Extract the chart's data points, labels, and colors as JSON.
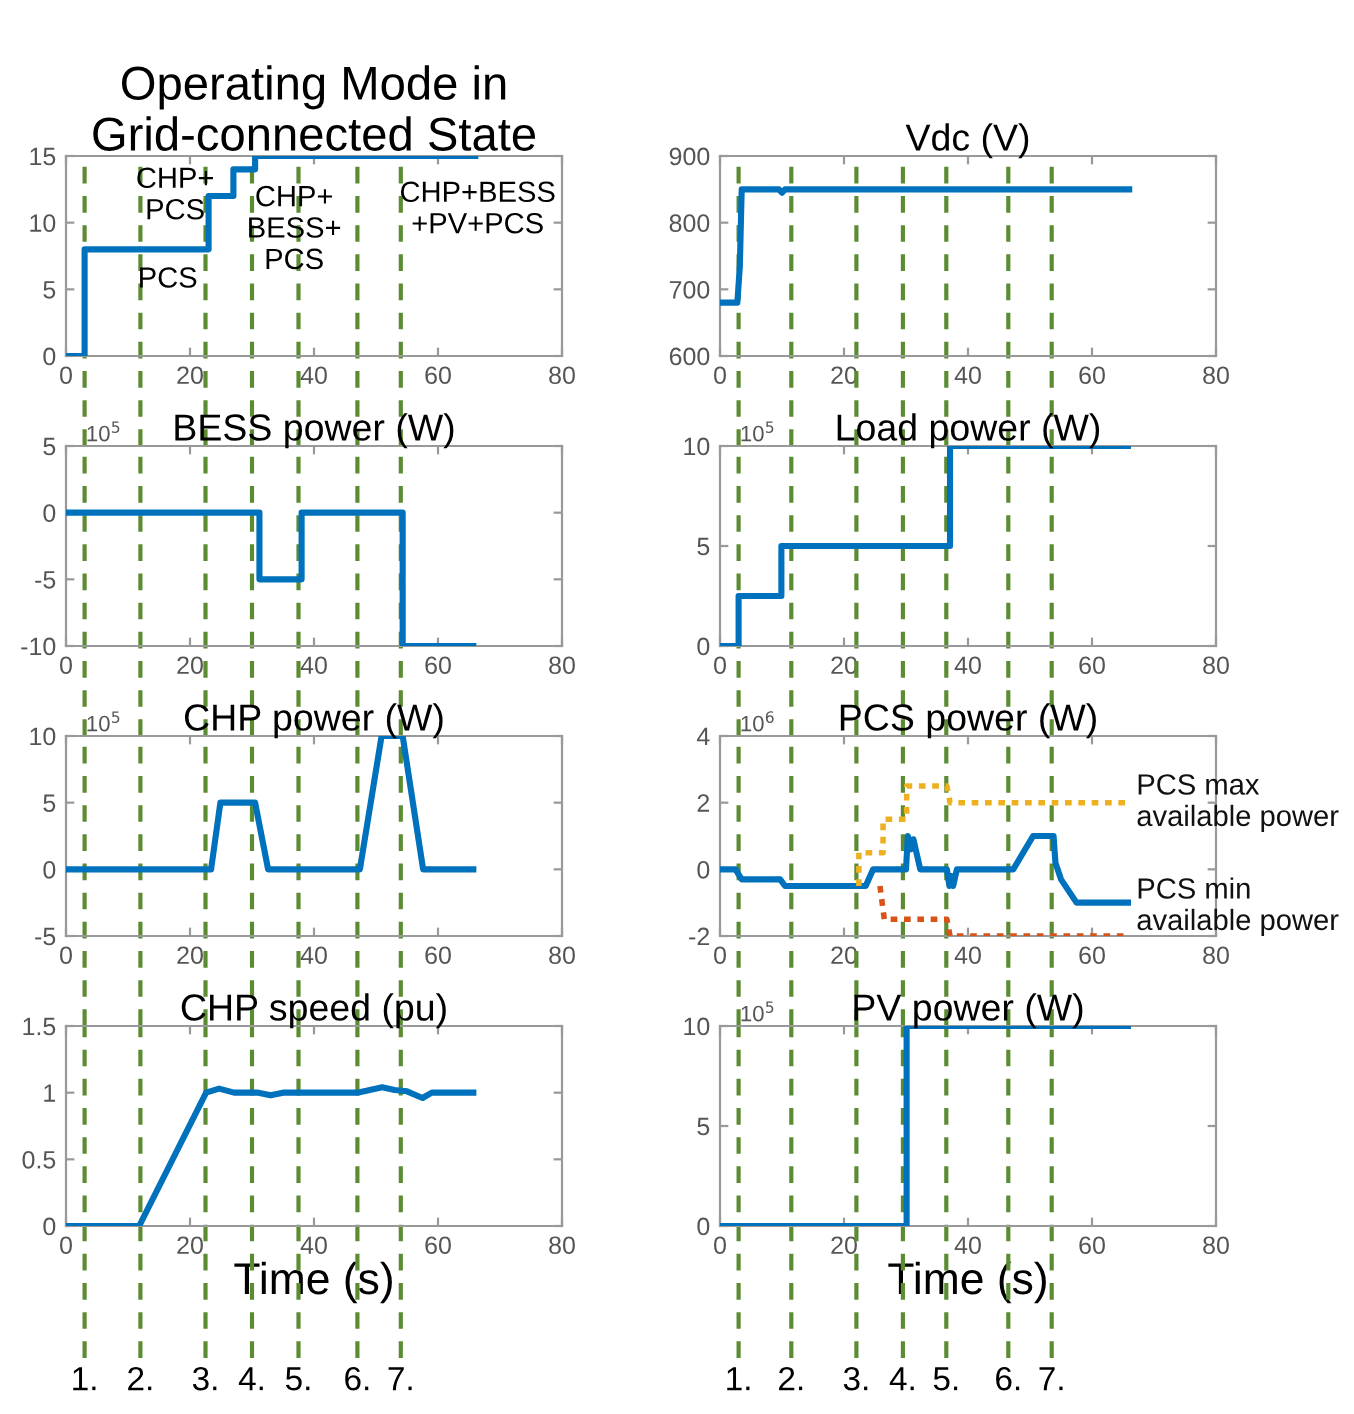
{
  "chart_data": [
    {
      "type": "line",
      "title": "Operating Mode in\nGrid-connected State",
      "xlim": [
        0,
        80
      ],
      "xticks": [
        0,
        20,
        40,
        60,
        80
      ],
      "ylim": [
        0,
        15
      ],
      "yticks": [
        0,
        5,
        10,
        15
      ],
      "grid": false,
      "series": [
        {
          "color": "#0072bd",
          "x": [
            0,
            3,
            3,
            23,
            23,
            27,
            27,
            30.5,
            30.5,
            66
          ],
          "values": [
            0,
            0,
            8,
            8,
            12,
            12,
            14,
            14,
            15,
            15
          ]
        }
      ],
      "annotations": [
        "CHP+\nPCS",
        "PCS",
        "CHP+\nBESS+\nPCS",
        "CHP+BESS\n+PV+PCS"
      ],
      "ref_lines": [
        {
          "axis": "x",
          "value": 3,
          "label": null,
          "color": "#5b8c32",
          "line_style": "dashed"
        },
        {
          "axis": "x",
          "value": 12,
          "label": null,
          "color": "#5b8c32",
          "line_style": "dashed"
        },
        {
          "axis": "x",
          "value": 22.5,
          "label": null,
          "color": "#5b8c32",
          "line_style": "dashed"
        },
        {
          "axis": "x",
          "value": 30,
          "label": null,
          "color": "#5b8c32",
          "line_style": "dashed"
        },
        {
          "axis": "x",
          "value": 37.5,
          "label": null,
          "color": "#5b8c32",
          "line_style": "dashed"
        },
        {
          "axis": "x",
          "value": 47,
          "label": null,
          "color": "#5b8c32",
          "line_style": "dashed"
        },
        {
          "axis": "x",
          "value": 54,
          "label": null,
          "color": "#5b8c32",
          "line_style": "dashed"
        }
      ]
    },
    {
      "type": "line",
      "title": "Vdc (V)",
      "xlim": [
        0,
        80
      ],
      "xticks": [
        0,
        20,
        40,
        60,
        80
      ],
      "ylim": [
        600,
        900
      ],
      "yticks": [
        600,
        700,
        800,
        900
      ],
      "grid": false,
      "series": [
        {
          "color": "#0072bd",
          "x": [
            0,
            2.8,
            3.2,
            3.5,
            9.5,
            10,
            10.5,
            66
          ],
          "values": [
            680,
            680,
            735,
            850,
            850,
            845,
            850,
            850
          ]
        }
      ],
      "ref_lines": [
        {
          "axis": "x",
          "value": 3,
          "label": null,
          "color": "#5b8c32",
          "line_style": "dashed"
        },
        {
          "axis": "x",
          "value": 11.5,
          "label": null,
          "color": "#5b8c32",
          "line_style": "dashed"
        },
        {
          "axis": "x",
          "value": 22,
          "label": null,
          "color": "#5b8c32",
          "line_style": "dashed"
        },
        {
          "axis": "x",
          "value": 29.5,
          "label": null,
          "color": "#5b8c32",
          "line_style": "dashed"
        },
        {
          "axis": "x",
          "value": 36.5,
          "label": null,
          "color": "#5b8c32",
          "line_style": "dashed"
        },
        {
          "axis": "x",
          "value": 46.5,
          "label": null,
          "color": "#5b8c32",
          "line_style": "dashed"
        },
        {
          "axis": "x",
          "value": 53.5,
          "label": null,
          "color": "#5b8c32",
          "line_style": "dashed"
        }
      ]
    },
    {
      "type": "line",
      "title": "BESS power (W)",
      "xlim": [
        0,
        80
      ],
      "xticks": [
        0,
        20,
        40,
        60,
        80
      ],
      "ylim": [
        -10,
        5
      ],
      "yticks": [
        -10,
        -5,
        0,
        5
      ],
      "grid": false,
      "annotations": [
        "10$^{5}$"
      ],
      "series": [
        {
          "color": "#0072bd",
          "x": [
            0,
            31.2,
            31.2,
            38,
            38,
            54.3,
            54.3,
            65.7
          ],
          "values": [
            0,
            0,
            -5,
            -5,
            0,
            0,
            -10,
            -10
          ]
        }
      ],
      "ref_lines": [
        {
          "axis": "x",
          "value": 3,
          "label": null,
          "color": "#5b8c32",
          "line_style": "dashed"
        },
        {
          "axis": "x",
          "value": 12,
          "label": null,
          "color": "#5b8c32",
          "line_style": "dashed"
        },
        {
          "axis": "x",
          "value": 22.5,
          "label": null,
          "color": "#5b8c32",
          "line_style": "dashed"
        },
        {
          "axis": "x",
          "value": 30,
          "label": null,
          "color": "#5b8c32",
          "line_style": "dashed"
        },
        {
          "axis": "x",
          "value": 37.5,
          "label": null,
          "color": "#5b8c32",
          "line_style": "dashed"
        },
        {
          "axis": "x",
          "value": 47,
          "label": null,
          "color": "#5b8c32",
          "line_style": "dashed"
        },
        {
          "axis": "x",
          "value": 54,
          "label": null,
          "color": "#5b8c32",
          "line_style": "dashed"
        }
      ]
    },
    {
      "type": "line",
      "title": "Load power (W)",
      "xlim": [
        0,
        80
      ],
      "xticks": [
        0,
        20,
        40,
        60,
        80
      ],
      "ylim": [
        0,
        10
      ],
      "yticks": [
        0,
        5,
        10
      ],
      "grid": false,
      "annotations": [
        "10$^{5}$"
      ],
      "series": [
        {
          "color": "#0072bd",
          "x": [
            0,
            3,
            3,
            9.9,
            9.9,
            37.1,
            37.1,
            65.8
          ],
          "values": [
            0,
            0,
            2.5,
            2.5,
            5,
            5,
            10,
            10
          ]
        }
      ],
      "ref_lines": [
        {
          "axis": "x",
          "value": 3,
          "label": null,
          "color": "#5b8c32",
          "line_style": "dashed"
        },
        {
          "axis": "x",
          "value": 11.5,
          "label": null,
          "color": "#5b8c32",
          "line_style": "dashed"
        },
        {
          "axis": "x",
          "value": 22,
          "label": null,
          "color": "#5b8c32",
          "line_style": "dashed"
        },
        {
          "axis": "x",
          "value": 29.5,
          "label": null,
          "color": "#5b8c32",
          "line_style": "dashed"
        },
        {
          "axis": "x",
          "value": 36.5,
          "label": null,
          "color": "#5b8c32",
          "line_style": "dashed"
        },
        {
          "axis": "x",
          "value": 46.5,
          "label": null,
          "color": "#5b8c32",
          "line_style": "dashed"
        },
        {
          "axis": "x",
          "value": 53.5,
          "label": null,
          "color": "#5b8c32",
          "line_style": "dashed"
        }
      ]
    },
    {
      "type": "line",
      "title": "CHP power (W)",
      "xlim": [
        0,
        80
      ],
      "xticks": [
        0,
        20,
        40,
        60,
        80
      ],
      "ylim": [
        -5,
        10
      ],
      "yticks": [
        -5,
        0,
        5,
        10
      ],
      "grid": false,
      "annotations": [
        "10$^{5}$"
      ],
      "series": [
        {
          "color": "#0072bd",
          "x": [
            0,
            23.4,
            24.9,
            30.5,
            32.6,
            47.4,
            50.9,
            54.3,
            57.6,
            65.7
          ],
          "values": [
            0,
            0,
            5,
            5,
            0,
            0,
            10,
            10,
            0,
            0
          ]
        }
      ],
      "ref_lines": [
        {
          "axis": "x",
          "value": 3,
          "label": null,
          "color": "#5b8c32",
          "line_style": "dashed"
        },
        {
          "axis": "x",
          "value": 12,
          "label": null,
          "color": "#5b8c32",
          "line_style": "dashed"
        },
        {
          "axis": "x",
          "value": 22.5,
          "label": null,
          "color": "#5b8c32",
          "line_style": "dashed"
        },
        {
          "axis": "x",
          "value": 30,
          "label": null,
          "color": "#5b8c32",
          "line_style": "dashed"
        },
        {
          "axis": "x",
          "value": 37.5,
          "label": null,
          "color": "#5b8c32",
          "line_style": "dashed"
        },
        {
          "axis": "x",
          "value": 47,
          "label": null,
          "color": "#5b8c32",
          "line_style": "dashed"
        },
        {
          "axis": "x",
          "value": 54,
          "label": null,
          "color": "#5b8c32",
          "line_style": "dashed"
        }
      ]
    },
    {
      "type": "line",
      "title": "PCS power (W)",
      "xlim": [
        0,
        80
      ],
      "xticks": [
        0,
        20,
        40,
        60,
        80
      ],
      "ylim": [
        -2,
        4
      ],
      "yticks": [
        -2,
        0,
        2,
        4
      ],
      "grid": false,
      "annotations": [
        "10$^{6}$"
      ],
      "series": [
        {
          "color": "#0072bd",
          "x": [
            0,
            2.5,
            3.5,
            9.7,
            10.5,
            23.5,
            24.7,
            30,
            30.3,
            30.8,
            31.2,
            32.3,
            36.6,
            37,
            37.3,
            37.6,
            38.2,
            47.3,
            50.5,
            53.8,
            54.1,
            55,
            57.5,
            65.8
          ],
          "values": [
            0,
            0,
            -0.3,
            -0.3,
            -0.5,
            -0.5,
            0,
            0,
            1,
            0.6,
            0.9,
            0,
            0,
            -0.5,
            -0.2,
            -0.5,
            0,
            0,
            1,
            1,
            0.2,
            -0.3,
            -1,
            -1
          ]
        },
        {
          "name": "PCS max\navailable power",
          "color": "#edb120",
          "line_style": "dotted",
          "x": [
            22.4,
            22.4,
            26.3,
            26.3,
            30.1,
            30.1,
            36.6,
            37.1,
            65.8
          ],
          "values": [
            -0.5,
            0.5,
            0.5,
            1.5,
            1.5,
            2.5,
            2.5,
            2,
            2
          ]
        },
        {
          "name": "PCS min\navailable power",
          "color": "#d95319",
          "line_style": "dotted",
          "x": [
            25.8,
            26.5,
            36.6,
            37.1,
            65.8
          ],
          "values": [
            -0.5,
            -1.5,
            -1.5,
            -2,
            -2
          ]
        }
      ],
      "ref_lines": [
        {
          "axis": "x",
          "value": 3,
          "label": null,
          "color": "#5b8c32",
          "line_style": "dashed"
        },
        {
          "axis": "x",
          "value": 11.5,
          "label": null,
          "color": "#5b8c32",
          "line_style": "dashed"
        },
        {
          "axis": "x",
          "value": 22,
          "label": null,
          "color": "#5b8c32",
          "line_style": "dashed"
        },
        {
          "axis": "x",
          "value": 29.5,
          "label": null,
          "color": "#5b8c32",
          "line_style": "dashed"
        },
        {
          "axis": "x",
          "value": 36.5,
          "label": null,
          "color": "#5b8c32",
          "line_style": "dashed"
        },
        {
          "axis": "x",
          "value": 46.5,
          "label": null,
          "color": "#5b8c32",
          "line_style": "dashed"
        },
        {
          "axis": "x",
          "value": 53.5,
          "label": null,
          "color": "#5b8c32",
          "line_style": "dashed"
        }
      ]
    },
    {
      "type": "line",
      "title": "CHP speed (pu)",
      "xlabel": "Time (s)",
      "xlim": [
        0,
        80
      ],
      "xticks": [
        0,
        20,
        40,
        60,
        80
      ],
      "ylim": [
        0,
        1.5
      ],
      "yticks": [
        0,
        0.5,
        1,
        1.5
      ],
      "grid": false,
      "annotations": [
        "1.",
        "2.",
        "3.",
        "4.",
        "5.",
        "6.",
        "7."
      ],
      "series": [
        {
          "color": "#0072bd",
          "x": [
            0,
            11.8,
            22.6,
            24.7,
            27.1,
            31,
            33,
            35,
            47,
            49,
            51,
            53,
            55,
            57.5,
            59,
            65.7
          ],
          "values": [
            0,
            0,
            1,
            1.03,
            1,
            1,
            0.98,
            1,
            1,
            1.02,
            1.04,
            1.02,
            1.01,
            0.96,
            1,
            1
          ]
        }
      ],
      "ref_lines": [
        {
          "axis": "x",
          "value": 3,
          "label": null,
          "color": "#5b8c32",
          "line_style": "dashed"
        },
        {
          "axis": "x",
          "value": 12,
          "label": null,
          "color": "#5b8c32",
          "line_style": "dashed"
        },
        {
          "axis": "x",
          "value": 22.5,
          "label": null,
          "color": "#5b8c32",
          "line_style": "dashed"
        },
        {
          "axis": "x",
          "value": 30,
          "label": null,
          "color": "#5b8c32",
          "line_style": "dashed"
        },
        {
          "axis": "x",
          "value": 37.5,
          "label": null,
          "color": "#5b8c32",
          "line_style": "dashed"
        },
        {
          "axis": "x",
          "value": 47,
          "label": null,
          "color": "#5b8c32",
          "line_style": "dashed"
        },
        {
          "axis": "x",
          "value": 54,
          "label": null,
          "color": "#5b8c32",
          "line_style": "dashed"
        }
      ]
    },
    {
      "type": "line",
      "title": "PV power (W)",
      "xlabel": "Time (s)",
      "xlim": [
        0,
        80
      ],
      "xticks": [
        0,
        20,
        40,
        60,
        80
      ],
      "ylim": [
        0,
        10
      ],
      "yticks": [
        0,
        5,
        10
      ],
      "grid": false,
      "annotations": [
        "10$^{5}$",
        "1.",
        "2.",
        "3.",
        "4.",
        "5.",
        "6.",
        "7."
      ],
      "series": [
        {
          "color": "#0072bd",
          "x": [
            0,
            30.1,
            30.1,
            65.8
          ],
          "values": [
            0,
            0,
            10,
            10
          ]
        }
      ],
      "ref_lines": [
        {
          "axis": "x",
          "value": 3,
          "label": null,
          "color": "#5b8c32",
          "line_style": "dashed"
        },
        {
          "axis": "x",
          "value": 11.5,
          "label": null,
          "color": "#5b8c32",
          "line_style": "dashed"
        },
        {
          "axis": "x",
          "value": 22,
          "label": null,
          "color": "#5b8c32",
          "line_style": "dashed"
        },
        {
          "axis": "x",
          "value": 29.5,
          "label": null,
          "color": "#5b8c32",
          "line_style": "dashed"
        },
        {
          "axis": "x",
          "value": 36.5,
          "label": null,
          "color": "#5b8c32",
          "line_style": "dashed"
        },
        {
          "axis": "x",
          "value": 46.5,
          "label": null,
          "color": "#5b8c32",
          "line_style": "dashed"
        },
        {
          "axis": "x",
          "value": 53.5,
          "label": null,
          "color": "#5b8c32",
          "line_style": "dashed"
        }
      ]
    }
  ]
}
